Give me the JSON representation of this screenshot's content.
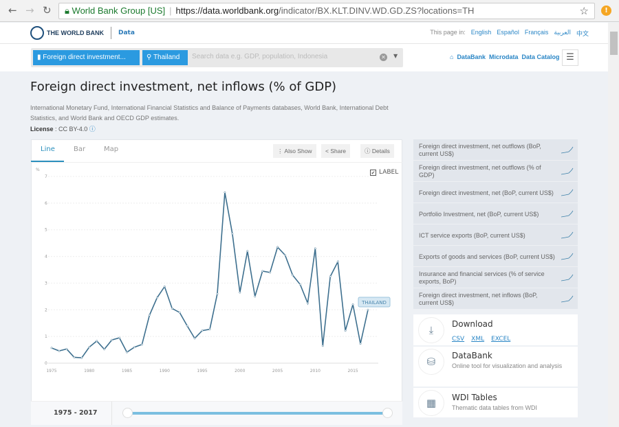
{
  "browser": {
    "site": "World Bank Group [US]",
    "url_domain": "https://data.worldbank.org",
    "url_path": "/indicator/BX.KLT.DINV.WD.GD.ZS?locations=TH"
  },
  "header": {
    "logo": "THE WORLD BANK",
    "section": "Data",
    "page_in": "This page in:",
    "languages": [
      "English",
      "Español",
      "Français",
      "العربية",
      "中文"
    ]
  },
  "search": {
    "indicator": "Foreign direct investment...",
    "location": "Thailand",
    "placeholder": "Search data e.g. GDP, population, Indonesia"
  },
  "toplinks": [
    "DataBank",
    "Microdata",
    "Data Catalog"
  ],
  "page": {
    "title": "Foreign direct investment, net inflows (% of GDP)",
    "source": "International Monetary Fund, International Financial Statistics and Balance of Payments databases, World Bank, International Debt Statistics, and World Bank and OECD GDP estimates.",
    "license_label": "License",
    "license_value": ": CC BY-4.0"
  },
  "tabs": [
    "Line",
    "Bar",
    "Map"
  ],
  "buttons": {
    "also_show": "Also Show",
    "share": "Share",
    "details": "Details"
  },
  "label_toggle": {
    "text": "LABEL",
    "checked": true
  },
  "range": "1975 - 2017",
  "accent": "#2a8fbd",
  "chart_data": {
    "type": "line",
    "ylabel": "%",
    "ylim": [
      0,
      7
    ],
    "yticks": [
      0,
      1,
      2,
      3,
      4,
      5,
      6,
      7
    ],
    "xticks": [
      1975,
      1980,
      1985,
      1990,
      1995,
      2000,
      2005,
      2010,
      2015
    ],
    "grid": true,
    "series": [
      {
        "name": "THAILAND",
        "color": "#3d6f8e",
        "x": [
          1975,
          1976,
          1977,
          1978,
          1979,
          1980,
          1981,
          1982,
          1983,
          1984,
          1985,
          1986,
          1987,
          1988,
          1989,
          1990,
          1991,
          1992,
          1993,
          1994,
          1995,
          1996,
          1997,
          1998,
          1999,
          2000,
          2001,
          2002,
          2003,
          2004,
          2005,
          2006,
          2007,
          2008,
          2009,
          2010,
          2011,
          2012,
          2013,
          2014,
          2015,
          2016,
          2017
        ],
        "values": [
          0.57,
          0.46,
          0.53,
          0.22,
          0.2,
          0.6,
          0.83,
          0.52,
          0.87,
          0.95,
          0.41,
          0.6,
          0.7,
          1.8,
          2.45,
          2.87,
          2.05,
          1.9,
          1.4,
          0.93,
          1.22,
          1.27,
          2.6,
          6.4,
          4.85,
          2.65,
          4.2,
          2.5,
          3.45,
          3.4,
          4.35,
          4.05,
          3.3,
          2.95,
          2.25,
          4.3,
          0.65,
          3.25,
          3.8,
          1.22,
          2.2,
          0.73,
          2.0
        ]
      }
    ]
  },
  "related": [
    "Foreign direct investment, net outflows (BoP, current US$)",
    "Foreign direct investment, net outflows (% of GDP)",
    "Foreign direct investment, net (BoP, current US$)",
    "Portfolio Investment, net (BoP, current US$)",
    "ICT service exports (BoP, current US$)",
    "Exports of goods and services (BoP, current US$)",
    "Insurance and financial services (% of service exports, BoP)",
    "Foreign direct investment, net inflows (BoP, current US$)"
  ],
  "download": {
    "title": "Download",
    "formats": [
      "CSV",
      "XML",
      "EXCEL"
    ]
  },
  "databank": {
    "title": "DataBank",
    "desc": "Online tool for visualization and analysis"
  },
  "wdi": {
    "title": "WDI Tables",
    "desc": "Thematic data tables from WDI"
  }
}
